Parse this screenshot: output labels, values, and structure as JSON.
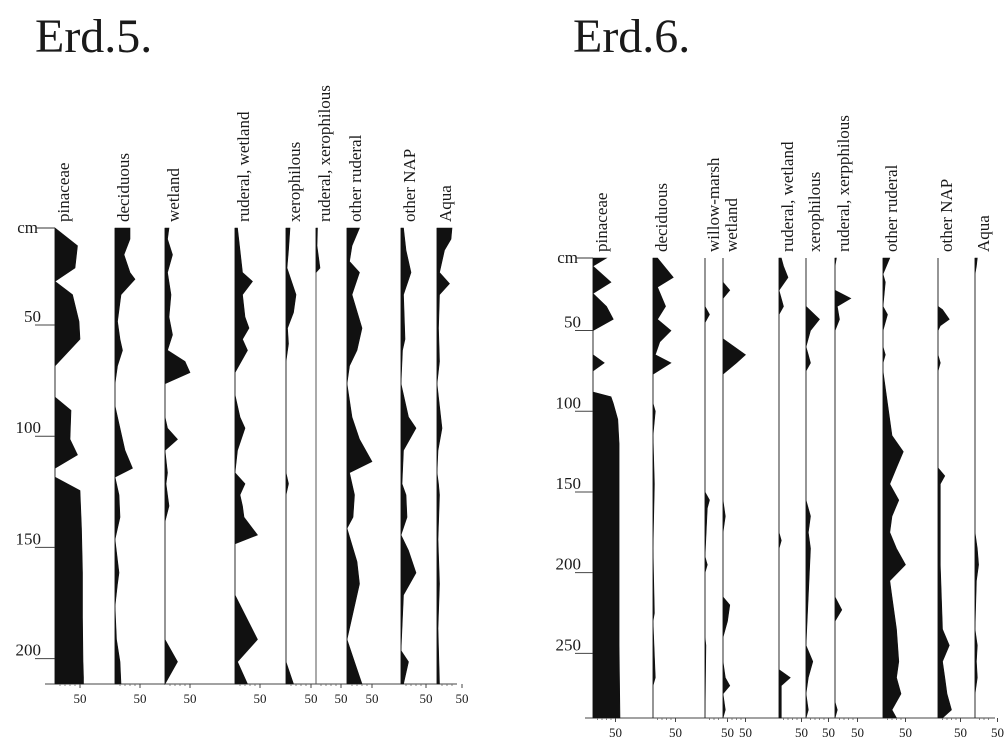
{
  "chart_data": [
    {
      "type": "area",
      "title": "Erd.5.",
      "depth_unit": "cm",
      "depth_ticks": [
        50,
        100,
        150,
        200
      ],
      "depth_range": [
        10,
        215
      ],
      "axis_tick_label": "50",
      "series": [
        {
          "name": "pinaceae",
          "depth": [
            10,
            18,
            28,
            34,
            40,
            52,
            60,
            72,
            80,
            86,
            92,
            105,
            112,
            118,
            122,
            128,
            145,
            165,
            185,
            205,
            212,
            215
          ],
          "values": [
            0,
            45,
            40,
            0,
            35,
            48,
            50,
            0,
            0,
            0,
            32,
            30,
            45,
            0,
            0,
            50,
            53,
            55,
            55,
            56,
            57,
            57
          ]
        },
        {
          "name": "deciduous",
          "depth": [
            10,
            15,
            22,
            30,
            33,
            40,
            52,
            60,
            65,
            72,
            80,
            90,
            100,
            110,
            118,
            122,
            130,
            140,
            150,
            165,
            170,
            180,
            195,
            205,
            215
          ],
          "values": [
            30,
            30,
            18,
            30,
            40,
            12,
            5,
            10,
            15,
            5,
            0,
            0,
            10,
            20,
            35,
            0,
            8,
            10,
            0,
            8,
            5,
            0,
            3,
            10,
            12
          ]
        },
        {
          "name": "wetland",
          "depth": [
            10,
            15,
            22,
            30,
            40,
            50,
            58,
            65,
            70,
            75,
            80,
            95,
            100,
            105,
            110,
            120,
            125,
            135,
            142,
            195,
            205,
            215
          ],
          "values": [
            8,
            5,
            15,
            5,
            12,
            8,
            15,
            5,
            40,
            50,
            0,
            0,
            5,
            25,
            0,
            5,
            2,
            8,
            0,
            0,
            25,
            0
          ]
        },
        {
          "name": "ruderal, wetland",
          "depth": [
            10,
            20,
            30,
            34,
            40,
            50,
            55,
            60,
            65,
            75,
            85,
            95,
            100,
            110,
            120,
            125,
            130,
            135,
            140,
            148,
            152,
            175,
            195,
            205,
            215
          ],
          "values": [
            5,
            10,
            15,
            35,
            15,
            20,
            28,
            15,
            25,
            0,
            0,
            10,
            20,
            5,
            0,
            20,
            10,
            15,
            18,
            45,
            0,
            0,
            45,
            5,
            25
          ]
        },
        {
          "name": "xerophilous",
          "depth": [
            10,
            20,
            28,
            40,
            48,
            55,
            62,
            70,
            80,
            120,
            125,
            130,
            135,
            205,
            215
          ],
          "values": [
            8,
            5,
            2,
            20,
            15,
            3,
            5,
            0,
            0,
            0,
            5,
            0,
            0,
            0,
            15
          ]
        },
        {
          "name": "ruderal, xerophilous",
          "depth": [
            10,
            18,
            28,
            30
          ],
          "values": [
            3,
            2,
            8,
            0
          ]
        },
        {
          "name": "other ruderal",
          "depth": [
            10,
            18,
            25,
            30,
            40,
            55,
            65,
            72,
            80,
            95,
            105,
            115,
            120,
            125,
            130,
            140,
            145,
            160,
            170,
            195,
            205,
            215
          ],
          "values": [
            25,
            10,
            5,
            25,
            10,
            30,
            20,
            5,
            0,
            10,
            25,
            50,
            5,
            10,
            15,
            12,
            0,
            20,
            25,
            0,
            15,
            30
          ]
        },
        {
          "name": "other NAP",
          "depth": [
            10,
            20,
            30,
            40,
            60,
            65,
            80,
            95,
            100,
            110,
            125,
            130,
            140,
            148,
            155,
            165,
            175,
            200,
            205,
            215
          ],
          "values": [
            5,
            10,
            20,
            5,
            8,
            3,
            0,
            15,
            30,
            5,
            2,
            10,
            12,
            0,
            15,
            30,
            5,
            0,
            15,
            5
          ]
        },
        {
          "name": "Aqua",
          "depth": [
            10,
            15,
            20,
            30,
            35,
            40,
            55,
            70,
            80,
            100,
            110,
            120,
            125,
            130,
            150,
            170,
            190,
            215
          ],
          "values": [
            30,
            28,
            15,
            5,
            25,
            5,
            3,
            5,
            0,
            10,
            2,
            0,
            3,
            5,
            2,
            5,
            2,
            5
          ]
        }
      ]
    },
    {
      "type": "area",
      "title": "Erd.6.",
      "depth_unit": "cm",
      "depth_ticks": [
        50,
        100,
        150,
        200,
        250
      ],
      "depth_range": [
        10,
        295
      ],
      "axis_tick_label": "50",
      "series": [
        {
          "name": "pinaceae",
          "depth": [
            10,
            15,
            25,
            32,
            40,
            48,
            55,
            70,
            75,
            80,
            85,
            90,
            93,
            96,
            100,
            110,
            125,
            150,
            200,
            250,
            295
          ],
          "values": [
            30,
            0,
            40,
            0,
            30,
            45,
            0,
            0,
            25,
            0,
            0,
            0,
            0,
            40,
            45,
            55,
            58,
            58,
            58,
            58,
            60
          ]
        },
        {
          "name": "deciduous",
          "depth": [
            10,
            22,
            28,
            40,
            48,
            55,
            62,
            70,
            75,
            82,
            100,
            105,
            120,
            150,
            190,
            230,
            235,
            270,
            275,
            295
          ],
          "values": [
            10,
            45,
            10,
            28,
            10,
            40,
            15,
            5,
            40,
            0,
            0,
            5,
            0,
            3,
            0,
            3,
            0,
            5,
            0,
            0
          ]
        },
        {
          "name": "willow-marsh",
          "depth": [
            10,
            40,
            45,
            50,
            155,
            160,
            165,
            195,
            200,
            205,
            245,
            250,
            295
          ],
          "values": [
            0,
            0,
            10,
            0,
            0,
            10,
            5,
            0,
            5,
            0,
            0,
            2,
            0
          ]
        },
        {
          "name": "wetland",
          "depth": [
            10,
            25,
            30,
            35,
            60,
            70,
            75,
            82,
            160,
            170,
            180,
            220,
            225,
            235,
            245,
            260,
            270,
            275,
            280,
            290,
            295
          ],
          "values": [
            0,
            0,
            15,
            0,
            0,
            50,
            30,
            0,
            0,
            5,
            0,
            0,
            15,
            10,
            0,
            0,
            5,
            15,
            0,
            5,
            0
          ]
        },
        {
          "name": "ruderal, wetland",
          "depth": [
            10,
            15,
            22,
            30,
            40,
            45,
            50,
            180,
            185,
            190,
            265,
            270,
            275,
            295
          ],
          "values": [
            5,
            10,
            20,
            0,
            10,
            0,
            0,
            0,
            5,
            0,
            0,
            25,
            5,
            5
          ]
        },
        {
          "name": "xerophilous",
          "depth": [
            10,
            40,
            48,
            55,
            65,
            70,
            75,
            80,
            160,
            170,
            180,
            190,
            250,
            260,
            270,
            280,
            290,
            295
          ],
          "values": [
            0,
            0,
            30,
            10,
            0,
            5,
            10,
            0,
            0,
            10,
            5,
            10,
            0,
            15,
            5,
            0,
            5,
            0
          ]
        },
        {
          "name": "ruderal, xerpphilous",
          "depth": [
            10,
            15,
            30,
            35,
            40,
            48,
            55,
            220,
            228,
            235,
            285,
            290,
            295
          ],
          "values": [
            3,
            0,
            0,
            35,
            5,
            10,
            0,
            0,
            15,
            0,
            0,
            5,
            0
          ]
        },
        {
          "name": "other ruderal",
          "depth": [
            10,
            20,
            25,
            40,
            45,
            55,
            65,
            70,
            75,
            80,
            120,
            130,
            140,
            150,
            160,
            170,
            180,
            190,
            200,
            210,
            220,
            240,
            260,
            270,
            280,
            290,
            295
          ],
          "values": [
            15,
            0,
            5,
            0,
            10,
            0,
            0,
            5,
            0,
            0,
            20,
            45,
            30,
            15,
            35,
            20,
            15,
            30,
            50,
            15,
            20,
            30,
            35,
            30,
            40,
            20,
            30
          ]
        },
        {
          "name": "other NAP",
          "depth": [
            10,
            40,
            42,
            48,
            52,
            55,
            70,
            75,
            80,
            140,
            145,
            150,
            200,
            240,
            250,
            260,
            270,
            280,
            290,
            295
          ],
          "values": [
            0,
            0,
            10,
            25,
            5,
            0,
            0,
            5,
            0,
            0,
            15,
            5,
            5,
            10,
            25,
            10,
            15,
            20,
            30,
            10
          ]
        },
        {
          "name": "Aqua",
          "depth": [
            10,
            15,
            20,
            180,
            190,
            200,
            210,
            240,
            250,
            260,
            270,
            280,
            295
          ],
          "values": [
            5,
            3,
            0,
            0,
            5,
            8,
            3,
            0,
            5,
            3,
            5,
            0,
            0
          ]
        }
      ]
    }
  ]
}
